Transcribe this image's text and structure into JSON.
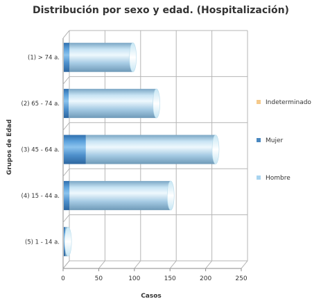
{
  "chart_data": {
    "type": "bar",
    "orientation": "horizontal",
    "stacked": true,
    "style": "3d-cylinder",
    "title": "Distribución por sexo y edad. (Hospitalización)",
    "xlabel": "Casos",
    "ylabel": "Grupos de Edad",
    "xlim": [
      0,
      250
    ],
    "xticks": [
      0,
      50,
      100,
      150,
      200,
      250
    ],
    "grid": true,
    "legend_position": "right",
    "categories": [
      "(1) > 74 a.",
      "(2) 65 - 74 a.",
      "(3) 45 - 64 a.",
      "(4) 15 - 44 a.",
      "(5) 1 - 14 a."
    ],
    "series": [
      {
        "name": "Indeterminado",
        "color": "#f5c98a",
        "values": [
          0,
          0,
          0,
          0,
          0
        ]
      },
      {
        "name": "Mujer",
        "color": "#4a88c0",
        "values": [
          8,
          7,
          31,
          8,
          2
        ]
      },
      {
        "name": "Hombre",
        "color": "#a8d4f0",
        "values": [
          89,
          123,
          182,
          142,
          4
        ]
      }
    ]
  }
}
